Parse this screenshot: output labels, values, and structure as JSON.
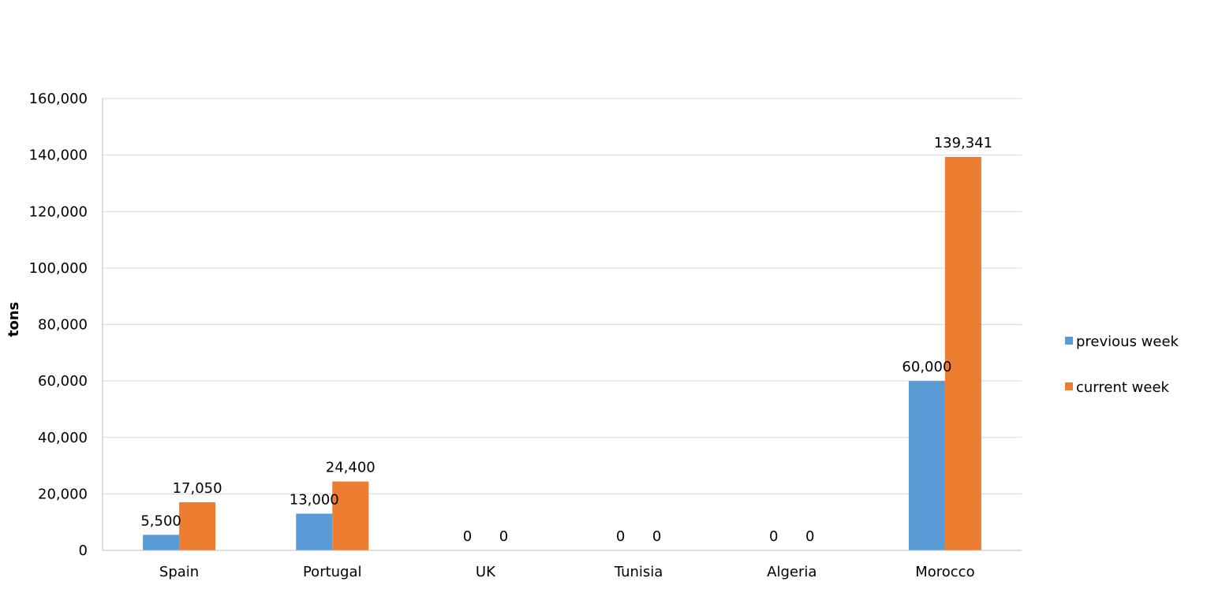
{
  "chart_data": {
    "type": "bar",
    "title": "",
    "xlabel": "",
    "ylabel": "tons",
    "categories": [
      "Spain",
      "Portugal",
      "UK",
      "Tunisia",
      "Algeria",
      "Morocco"
    ],
    "series": [
      {
        "name": "previous week",
        "values": [
          5500,
          13000,
          0,
          0,
          0,
          60000
        ],
        "labels": [
          "5,500",
          "13,000",
          "0",
          "0",
          "0",
          "60,000"
        ]
      },
      {
        "name": "current week",
        "values": [
          17050,
          24400,
          0,
          0,
          0,
          139341
        ],
        "labels": [
          "17,050",
          "24,400",
          "0",
          "0",
          "0",
          "139,341"
        ]
      }
    ],
    "ylim": [
      0,
      160000
    ],
    "yticks": [
      0,
      20000,
      40000,
      60000,
      80000,
      100000,
      120000,
      140000,
      160000
    ],
    "ytick_labels": [
      "0",
      "20,000",
      "40,000",
      "60,000",
      "80,000",
      "100,000",
      "120,000",
      "140,000",
      "160,000"
    ],
    "grid": true,
    "legend_position": "right",
    "colors": [
      "#5b9bd5",
      "#ed7d31"
    ]
  }
}
